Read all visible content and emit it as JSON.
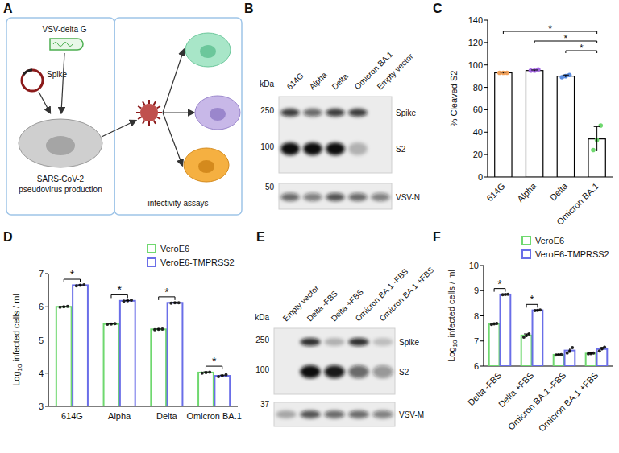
{
  "panel_labels": [
    "A",
    "B",
    "C",
    "D",
    "E",
    "F"
  ],
  "diagram": {
    "virus_label": "VSV-delta G",
    "plasmid_label": "Spike",
    "production_label": [
      "SARS-CoV-2",
      "pseudovirus production"
    ],
    "assay_label": "infectivity assays"
  },
  "blots": [
    {
      "unit": "kDa",
      "lanes": [
        "614G",
        "Alpha",
        "Delta",
        "Omicron BA.1",
        "Empty vector"
      ],
      "markers": [
        250,
        100,
        50
      ],
      "bands": [
        {
          "name": "Spike",
          "intensity": [
            0.8,
            0.6,
            0.8,
            0.8,
            0
          ]
        },
        {
          "name": "S2",
          "intensity": [
            1,
            1,
            1,
            0.25,
            0
          ]
        },
        {
          "name": "VSV-N",
          "intensity": [
            0.6,
            0.5,
            0.7,
            0.6,
            0.5
          ]
        }
      ]
    },
    {
      "unit": "kDa",
      "lanes": [
        "Empty vector",
        "Delta -FBS",
        "Delta +FBS",
        "Omicron BA.1 -FBS",
        "Omicron BA.1 +FBS"
      ],
      "markers": [
        250,
        100,
        37
      ],
      "bands": [
        {
          "name": "Spike",
          "intensity": [
            0,
            0.85,
            0.25,
            0.85,
            0.2
          ]
        },
        {
          "name": "S2",
          "intensity": [
            0,
            1,
            0.95,
            0.6,
            0.4
          ]
        },
        {
          "name": "VSV-M",
          "intensity": [
            0.3,
            0.7,
            0.6,
            0.6,
            0.5
          ]
        }
      ]
    }
  ],
  "chart_data": [
    {
      "type": "bar",
      "categories": [
        "614G",
        "Alpha",
        "Delta",
        "Omicron BA.1"
      ],
      "values": [
        93,
        95,
        90,
        34
      ],
      "errors": [
        0.5,
        0.5,
        1,
        11
      ],
      "points": [
        [
          93,
          93,
          93
        ],
        [
          95,
          95,
          96
        ],
        [
          89,
          90,
          91
        ],
        [
          24,
          33,
          46
        ]
      ],
      "colors": [
        "#f0a05a",
        "#a266e0",
        "#5b8de0",
        "#6fd86f"
      ],
      "y_label": "% Cleaved S2",
      "ylim": [
        0,
        140
      ],
      "yticks": [
        0,
        20,
        40,
        60,
        80,
        100,
        120,
        140
      ],
      "significance": [
        {
          "pair": [
            "614G",
            "Omicron BA.1"
          ],
          "label": "*"
        },
        {
          "pair": [
            "Alpha",
            "Omicron BA.1"
          ],
          "label": "*"
        },
        {
          "pair": [
            "Delta",
            "Omicron BA.1"
          ],
          "label": "*"
        }
      ]
    },
    {
      "type": "bar",
      "categories": [
        "614G",
        "Alpha",
        "Delta",
        "Omicron BA.1"
      ],
      "series": [
        {
          "name": "VeroE6",
          "color": "#6fd86f",
          "values": [
            6.0,
            5.48,
            5.32,
            4.02
          ],
          "errors": [
            0.01,
            0.01,
            0.01,
            0.02
          ],
          "points": [
            [
              5.99,
              6.0,
              6.01
            ],
            [
              5.47,
              5.48,
              5.49
            ],
            [
              5.31,
              5.32,
              5.33
            ],
            [
              4.0,
              4.02,
              4.03
            ]
          ]
        },
        {
          "name": "VeroE6-TMPRSS2",
          "color": "#6a6ee8",
          "values": [
            6.65,
            6.18,
            6.12,
            3.92
          ],
          "errors": [
            0.01,
            0.01,
            0.01,
            0.02
          ],
          "points": [
            [
              6.63,
              6.65,
              6.66
            ],
            [
              6.17,
              6.18,
              6.2
            ],
            [
              6.11,
              6.12,
              6.12
            ],
            [
              3.9,
              3.92,
              3.95
            ]
          ]
        }
      ],
      "y_label": [
        "Log",
        "10",
        " infected cells / ml"
      ],
      "ylim": [
        3,
        7
      ],
      "yticks": [
        3,
        4,
        5,
        6,
        7
      ],
      "legend": "upper right",
      "significance": [
        {
          "category": "614G",
          "label": "*"
        },
        {
          "category": "Alpha",
          "label": "*"
        },
        {
          "category": "Delta",
          "label": "*"
        },
        {
          "category": "Omicron BA.1",
          "label": "*"
        }
      ]
    },
    {
      "type": "bar",
      "categories": [
        "Delta -FBS",
        "Delta +FBS",
        "Omicron BA.1 -FBS",
        "Omicron BA.1 +FBS"
      ],
      "series": [
        {
          "name": "VeroE6",
          "color": "#6fd86f",
          "values": [
            7.68,
            7.22,
            6.45,
            6.5
          ],
          "errors": [
            0.03,
            0.06,
            0.02,
            0.02
          ],
          "points": [
            [
              7.66,
              7.68,
              7.7
            ],
            [
              7.15,
              7.22,
              7.28
            ],
            [
              6.44,
              6.45,
              6.46
            ],
            [
              6.49,
              6.5,
              6.52
            ]
          ]
        },
        {
          "name": "VeroE6-TMPRSS2",
          "color": "#6a6ee8",
          "values": [
            8.85,
            8.22,
            6.62,
            6.68
          ],
          "errors": [
            0.01,
            0.01,
            0.1,
            0.06
          ],
          "points": [
            [
              8.84,
              8.85,
              8.86
            ],
            [
              8.21,
              8.22,
              8.23
            ],
            [
              6.52,
              6.6,
              6.74
            ],
            [
              6.6,
              6.7,
              6.75
            ]
          ]
        }
      ],
      "y_label": [
        "Log",
        "10",
        " infected cells / ml"
      ],
      "ylim": [
        6,
        10
      ],
      "yticks": [
        6,
        7,
        8,
        9,
        10
      ],
      "legend": "upper right",
      "significance": [
        {
          "category": "Delta -FBS",
          "label": "*"
        },
        {
          "category": "Delta +FBS",
          "label": "*"
        }
      ]
    }
  ]
}
